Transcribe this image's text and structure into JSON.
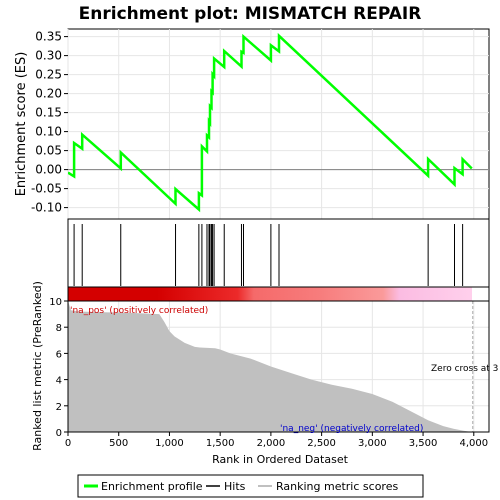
{
  "title": "Enrichment plot: MISMATCH REPAIR",
  "colors": {
    "enrichment": "#00ff00",
    "hits": "#000000",
    "metric_fill": "#c0c0c0",
    "zero_line": "#808080",
    "zero_cross_line": "#aaaaaa",
    "pos_label": "#cc0000",
    "neg_label": "#0000cc",
    "heat_stops": [
      "#d40000",
      "#e51a1a",
      "#f45050",
      "#fb8a8a",
      "#fbb8e4",
      "#ffd8f0"
    ]
  },
  "chart_data": [
    {
      "type": "line",
      "name": "enrichment-profile",
      "title": "Enrichment plot: MISMATCH REPAIR",
      "ylabel": "Enrichment score (ES)",
      "xlim": [
        0,
        4150
      ],
      "ylim": [
        -0.13,
        0.37
      ],
      "yticks": [
        -0.1,
        -0.05,
        0.0,
        0.05,
        0.1,
        0.15,
        0.2,
        0.25,
        0.3,
        0.35
      ],
      "ytick_labels": [
        "-0.10",
        "-0.05",
        "0.00",
        "0.05",
        "0.10",
        "0.15",
        "0.20",
        "0.25",
        "0.30",
        "0.35"
      ],
      "grid": true,
      "x": [
        0,
        60,
        60,
        140,
        140,
        520,
        520,
        1060,
        1060,
        1290,
        1290,
        1320,
        1320,
        1370,
        1370,
        1390,
        1390,
        1400,
        1400,
        1415,
        1415,
        1425,
        1425,
        1440,
        1440,
        1540,
        1540,
        1710,
        1710,
        1730,
        1730,
        2000,
        2000,
        2080,
        2080,
        3550,
        3550,
        3810,
        3810,
        3890,
        3890,
        3980
      ],
      "y": [
        -0.008,
        -0.018,
        0.07,
        0.055,
        0.092,
        0.003,
        0.045,
        -0.09,
        -0.051,
        -0.105,
        -0.062,
        -0.068,
        0.061,
        0.048,
        0.09,
        0.085,
        0.127,
        0.123,
        0.167,
        0.163,
        0.206,
        0.203,
        0.251,
        0.246,
        0.292,
        0.27,
        0.312,
        0.271,
        0.31,
        0.307,
        0.35,
        0.287,
        0.327,
        0.311,
        0.352,
        -0.016,
        0.028,
        -0.039,
        0.004,
        -0.012,
        0.027,
        0.003
      ]
    },
    {
      "type": "scatter",
      "name": "hits",
      "x": [
        60,
        140,
        520,
        1060,
        1290,
        1320,
        1370,
        1390,
        1400,
        1415,
        1425,
        1440,
        1540,
        1710,
        1730,
        2000,
        2080,
        3550,
        3810,
        3890
      ]
    },
    {
      "type": "area",
      "name": "ranked-list-metric",
      "xlabel": "Rank in Ordered Dataset",
      "ylabel": "Ranked list metric (PreRanked)",
      "xlim": [
        0,
        4150
      ],
      "ylim": [
        0,
        10
      ],
      "xticks": [
        0,
        500,
        1000,
        1500,
        2000,
        2500,
        3000,
        3500,
        4000
      ],
      "xtick_labels": [
        "0",
        "500",
        "1,000",
        "1,500",
        "2,000",
        "2,500",
        "3,000",
        "3,500",
        "4,000"
      ],
      "yticks": [
        0,
        2,
        4,
        6,
        8,
        10
      ],
      "ytick_labels": [
        "0",
        "2",
        "4",
        "6",
        "8",
        "10"
      ],
      "x": [
        0,
        30,
        100,
        300,
        600,
        900,
        950,
        1000,
        1050,
        1150,
        1250,
        1300,
        1450,
        1500,
        1600,
        1800,
        2000,
        2200,
        2400,
        2600,
        2800,
        3000,
        3200,
        3400,
        3550,
        3700,
        3800,
        3900,
        3980
      ],
      "y": [
        10.0,
        9.3,
        9.2,
        9.15,
        9.1,
        9.0,
        8.4,
        7.7,
        7.3,
        6.8,
        6.5,
        6.45,
        6.4,
        6.3,
        6.0,
        5.6,
        5.0,
        4.5,
        4.0,
        3.6,
        3.3,
        2.9,
        2.3,
        1.5,
        0.9,
        0.45,
        0.25,
        0.1,
        0.0
      ]
    }
  ],
  "labels": {
    "pos": "'na_pos' (positively correlated)",
    "neg": "'na_neg' (negatively correlated)",
    "zero_cross": "Zero cross at 3",
    "zero_cross_x": 3990
  },
  "legend": {
    "enrichment": "Enrichment profile",
    "hits": "Hits",
    "ranking": "Ranking metric scores"
  }
}
